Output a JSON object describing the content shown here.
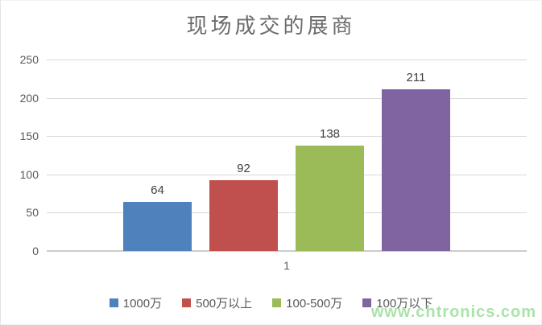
{
  "title": "现场成交的展商",
  "watermark": "www.chtronics.com",
  "colors": {
    "grid": "#d9d9d9",
    "axis_line": "#cccccc",
    "tick_text": "#595959",
    "label_text": "#404040",
    "title_text": "#6b6b6b",
    "watermark_text": "#a9e3aa"
  },
  "chart_data": {
    "type": "bar",
    "title": "现场成交的展商",
    "categories": [
      "1"
    ],
    "series": [
      {
        "name": "1000万",
        "values": [
          64
        ],
        "color": "#4f81bd"
      },
      {
        "name": "500万以上",
        "values": [
          92
        ],
        "color": "#c0504d"
      },
      {
        "name": "100-500万",
        "values": [
          138
        ],
        "color": "#9bbb59"
      },
      {
        "name": "100万以下",
        "values": [
          211
        ],
        "color": "#8064a2"
      }
    ],
    "xlabel": "",
    "ylabel": "",
    "ylim": [
      0,
      250
    ],
    "yticks": [
      0,
      50,
      100,
      150,
      200,
      250
    ],
    "grid": true,
    "legend_position": "bottom"
  }
}
